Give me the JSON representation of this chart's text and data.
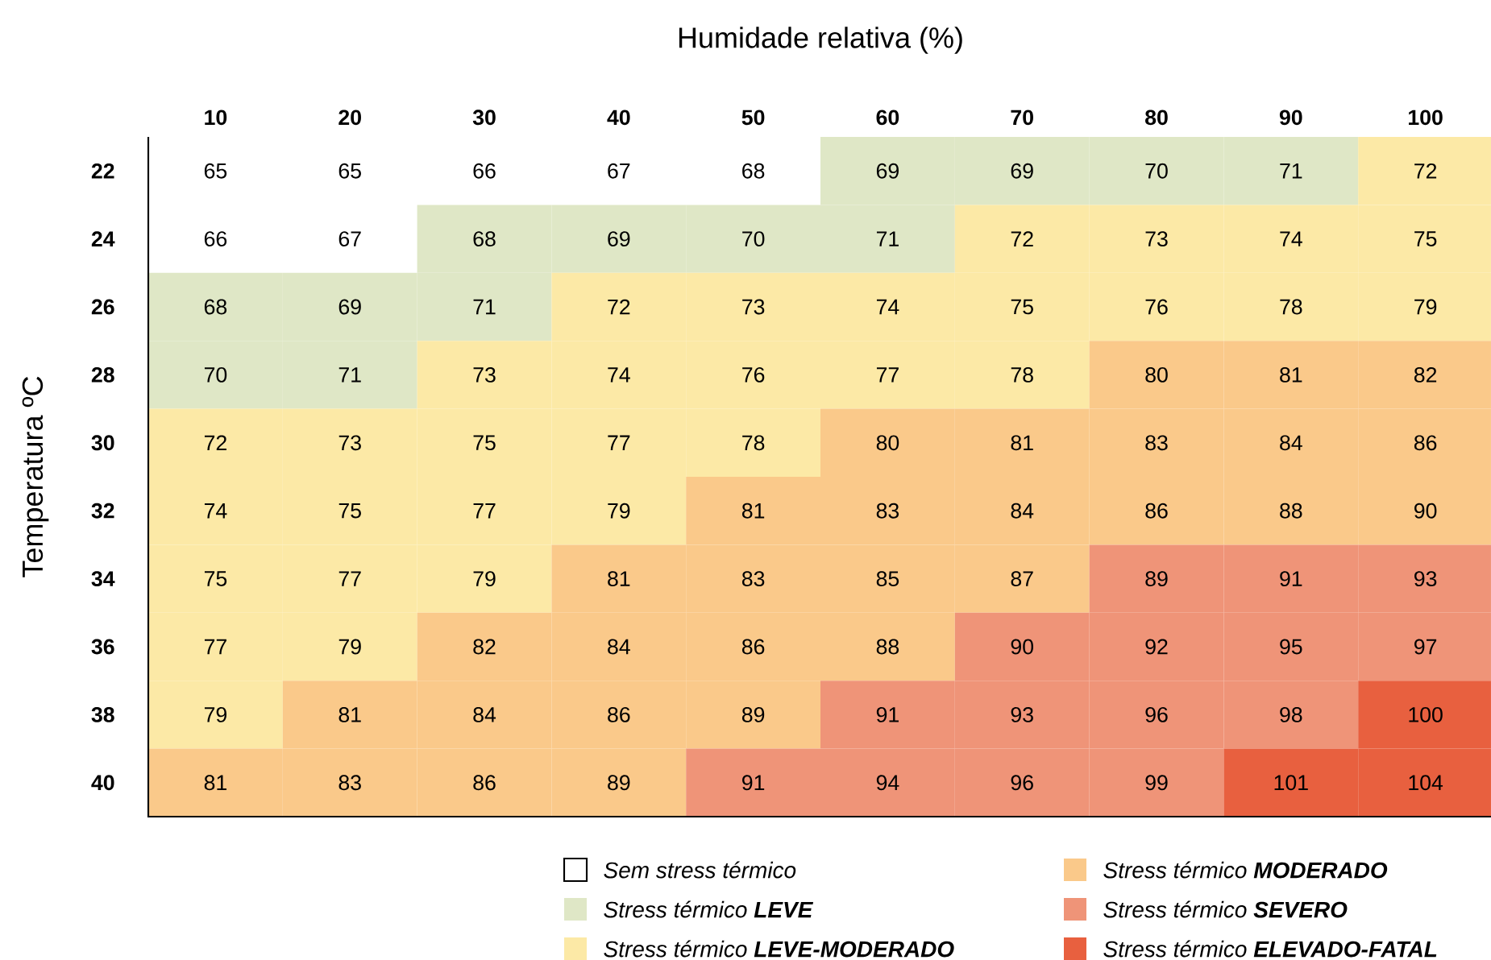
{
  "chart_data": {
    "type": "heatmap",
    "xlabel": "Humidade relativa (%)",
    "ylabel": "Temperatura ºC",
    "categories": [
      "10",
      "20",
      "30",
      "40",
      "50",
      "60",
      "70",
      "80",
      "90",
      "100"
    ],
    "y_categories": [
      "22",
      "24",
      "26",
      "28",
      "30",
      "32",
      "34",
      "36",
      "38",
      "40"
    ],
    "cells": [
      [
        65,
        65,
        66,
        67,
        68,
        69,
        69,
        70,
        71,
        72
      ],
      [
        66,
        67,
        68,
        69,
        70,
        71,
        72,
        73,
        74,
        75
      ],
      [
        68,
        69,
        71,
        72,
        73,
        74,
        75,
        76,
        78,
        79
      ],
      [
        70,
        71,
        73,
        74,
        76,
        77,
        78,
        80,
        81,
        82
      ],
      [
        72,
        73,
        75,
        77,
        78,
        80,
        81,
        83,
        84,
        86
      ],
      [
        74,
        75,
        77,
        79,
        81,
        83,
        84,
        86,
        88,
        90
      ],
      [
        75,
        77,
        79,
        81,
        83,
        85,
        87,
        89,
        91,
        93
      ],
      [
        77,
        79,
        82,
        84,
        86,
        88,
        90,
        92,
        95,
        97
      ],
      [
        79,
        81,
        84,
        86,
        89,
        91,
        93,
        96,
        98,
        100
      ],
      [
        81,
        83,
        86,
        89,
        91,
        94,
        96,
        99,
        101,
        104
      ]
    ],
    "colors": [
      [
        "#ffffff",
        "#ffffff",
        "#ffffff",
        "#ffffff",
        "#ffffff",
        "#dfe7c6",
        "#dfe7c6",
        "#dfe7c6",
        "#dfe7c6",
        "#fce9a6"
      ],
      [
        "#ffffff",
        "#ffffff",
        "#dfe7c6",
        "#dfe7c6",
        "#dfe7c6",
        "#dfe7c6",
        "#fce9a6",
        "#fce9a6",
        "#fce9a6",
        "#fce9a6"
      ],
      [
        "#dfe7c6",
        "#dfe7c6",
        "#dfe7c6",
        "#fce9a6",
        "#fce9a6",
        "#fce9a6",
        "#fce9a6",
        "#fce9a6",
        "#fce9a6",
        "#fce9a6"
      ],
      [
        "#dfe7c6",
        "#dfe7c6",
        "#fce9a6",
        "#fce9a6",
        "#fce9a6",
        "#fce9a6",
        "#fce9a6",
        "#fac98a",
        "#fac98a",
        "#fac98a"
      ],
      [
        "#fce9a6",
        "#fce9a6",
        "#fce9a6",
        "#fce9a6",
        "#fce9a6",
        "#fac98a",
        "#fac98a",
        "#fac98a",
        "#fac98a",
        "#fac98a"
      ],
      [
        "#fce9a6",
        "#fce9a6",
        "#fce9a6",
        "#fce9a6",
        "#fac98a",
        "#fac98a",
        "#fac98a",
        "#fac98a",
        "#fac98a",
        "#fac98a"
      ],
      [
        "#fce9a6",
        "#fce9a6",
        "#fce9a6",
        "#fac98a",
        "#fac98a",
        "#fac98a",
        "#fac98a",
        "#ef9478",
        "#ef9478",
        "#ef9478"
      ],
      [
        "#fce9a6",
        "#fce9a6",
        "#fac98a",
        "#fac98a",
        "#fac98a",
        "#fac98a",
        "#ef9478",
        "#ef9478",
        "#ef9478",
        "#ef9478"
      ],
      [
        "#fce9a6",
        "#fac98a",
        "#fac98a",
        "#fac98a",
        "#fac98a",
        "#ef9478",
        "#ef9478",
        "#ef9478",
        "#ef9478",
        "#e8603f"
      ],
      [
        "#fac98a",
        "#fac98a",
        "#fac98a",
        "#fac98a",
        "#ef9478",
        "#ef9478",
        "#ef9478",
        "#ef9478",
        "#e8603f",
        "#e8603f"
      ]
    ],
    "series": [
      {
        "name": "Sem stress térmico",
        "color": "#ffffff",
        "values": [
          null,
          null,
          null,
          null,
          null,
          null,
          null,
          null,
          null,
          null
        ]
      },
      {
        "name": "Stress térmico **LEVE**",
        "color": "#dfe7c6",
        "values": [
          null,
          null,
          null,
          null,
          null,
          null,
          null,
          null,
          null,
          null
        ]
      },
      {
        "name": "Stress térmico **LEVE-MODERADO**",
        "color": "#fce9a6",
        "values": [
          null,
          null,
          null,
          null,
          null,
          null,
          null,
          null,
          null,
          null
        ]
      },
      {
        "name": "Stress térmico **MODERADO**",
        "color": "#fac98a",
        "values": [
          null,
          null,
          null,
          null,
          null,
          null,
          null,
          null,
          null,
          null
        ]
      },
      {
        "name": "Stress térmico **SEVERO**",
        "color": "#ef9478",
        "values": [
          null,
          null,
          null,
          null,
          null,
          null,
          null,
          null,
          null,
          null
        ]
      },
      {
        "name": "Stress térmico **ELEVADO-FATAL**",
        "color": "#e8603f",
        "values": [
          null,
          null,
          null,
          null,
          null,
          null,
          null,
          null,
          null,
          null
        ]
      }
    ],
    "legend": "bottom right",
    "data_labels": true
  }
}
